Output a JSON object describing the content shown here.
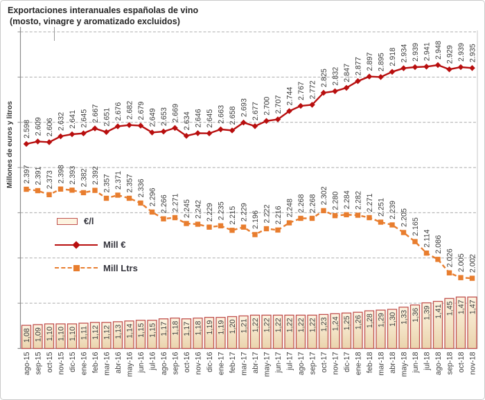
{
  "header": {
    "title_line1": "Exportaciones interanuales españolas de vino",
    "title_line2": "(mosto, vinagre y aromatizado excluidos)"
  },
  "y_axis": {
    "title": "Millones de euros y litros"
  },
  "colors": {
    "mill_eur": "#B80E0E",
    "mill_ltrs": "#E87D2E",
    "bar_fill_top": "#FDF4E1",
    "bar_fill_bottom": "#EAD3AC",
    "bar_border": "#C0504D",
    "gridline": "#ABABAB",
    "axis": "#8C8C8C",
    "label_text": "#3D3D3D"
  },
  "chart_data": {
    "type": "combo",
    "title": "Exportaciones interanuales españolas de vino (mosto, vinagre y aromatizado excluidos)",
    "ylabel": "Millones de euros y litros",
    "grid": "horizontal-dashed",
    "legend_position": "middle-left",
    "categories": [
      "ago-15",
      "sep-15",
      "oct-15",
      "nov-15",
      "dic-15",
      "ene-16",
      "feb-16",
      "mar-16",
      "abr-16",
      "may-16",
      "jun-16",
      "jul-16",
      "ago-16",
      "sep-16",
      "oct-16",
      "nov-16",
      "dic-16",
      "ene-17",
      "feb-17",
      "mar-17",
      "abr-17",
      "may-17",
      "jun-17",
      "jul-17",
      "ago-17",
      "sep-17",
      "oct-17",
      "nov-17",
      "dic-17",
      "ene-18",
      "feb-18",
      "mar-18",
      "abr-18",
      "may-18",
      "jun-18",
      "jul-18",
      "ago-18",
      "sep-18",
      "oct-18",
      "nov-18"
    ],
    "series": [
      {
        "name": "€/l",
        "type": "bar",
        "unit": "euros per litre",
        "number_format": "comma-decimal",
        "values": [
          1.08,
          1.09,
          1.1,
          1.1,
          1.1,
          1.11,
          1.12,
          1.12,
          1.13,
          1.14,
          1.15,
          1.15,
          1.17,
          1.18,
          1.17,
          1.18,
          1.19,
          1.19,
          1.2,
          1.21,
          1.22,
          1.22,
          1.22,
          1.22,
          1.22,
          1.22,
          1.23,
          1.24,
          1.25,
          1.26,
          1.28,
          1.29,
          1.3,
          1.33,
          1.36,
          1.39,
          1.41,
          1.45,
          1.47,
          1.47
        ]
      },
      {
        "name": "Mill €",
        "type": "line",
        "marker": "diamond",
        "unit": "millions of euros",
        "number_format": "dot-thousands",
        "values": [
          2598,
          2609,
          2606,
          2632,
          2641,
          2645,
          2667,
          2651,
          2676,
          2682,
          2679,
          2649,
          2653,
          2669,
          2634,
          2646,
          2645,
          2663,
          2658,
          2693,
          2677,
          2700,
          2707,
          2744,
          2767,
          2772,
          2825,
          2832,
          2847,
          2877,
          2897,
          2895,
          2918,
          2934,
          2939,
          2941,
          2948,
          2929,
          2939,
          2935
        ]
      },
      {
        "name": "Mill Ltrs",
        "type": "line",
        "line_style": "dashed",
        "marker": "square",
        "unit": "millions of litres",
        "number_format": "dot-thousands",
        "values": [
          2397,
          2391,
          2373,
          2398,
          2393,
          2382,
          2392,
          2357,
          2371,
          2357,
          2336,
          2296,
          2266,
          2271,
          2245,
          2242,
          2229,
          2235,
          2215,
          2229,
          2196,
          2222,
          2216,
          2248,
          2268,
          2268,
          2302,
          2280,
          2284,
          2282,
          2271,
          2251,
          2239,
          2205,
          2165,
          2114,
          2086,
          2026,
          2005,
          2002
        ]
      }
    ]
  }
}
